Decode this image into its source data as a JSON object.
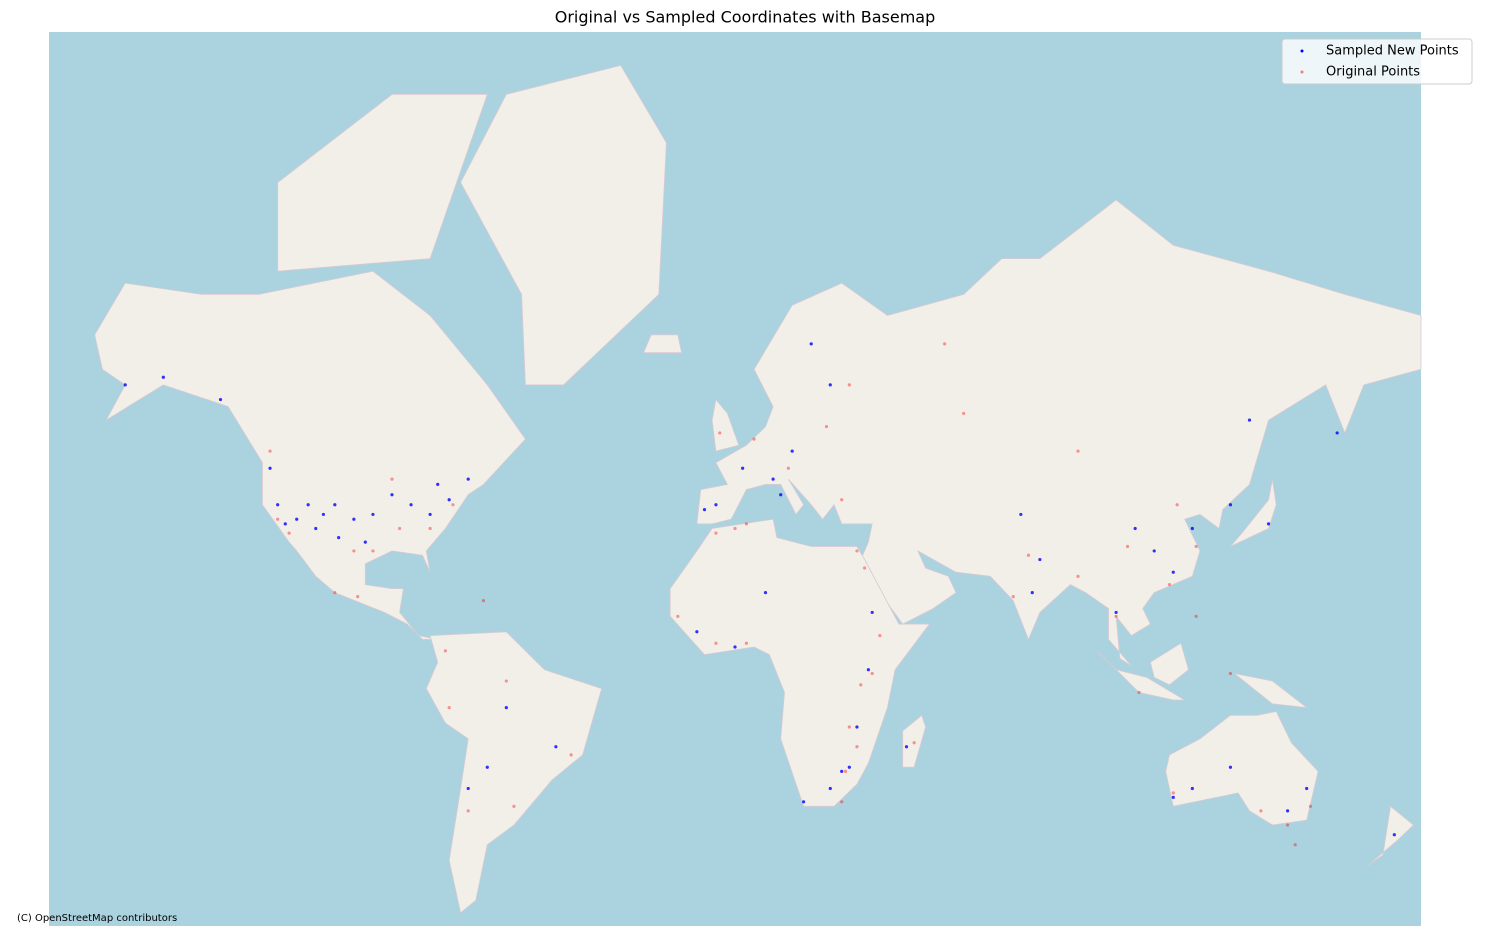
{
  "chart_data": {
    "type": "scatter",
    "title": "Original vs Sampled Coordinates with Basemap",
    "attribution": "(C) OpenStreetMap contributors",
    "projection": "mercator",
    "xlim": [
      -180,
      180
    ],
    "ylim": [
      -56,
      84
    ],
    "ocean_color": "#aad3df",
    "land_color": "#f2efe9",
    "legend": "upper right",
    "series": [
      {
        "name": "Sampled New Points",
        "color": "#0000ff",
        "x": [
          -120,
          -118,
          -115,
          -112,
          -110,
          -108,
          -105,
          -104,
          -100,
          -97,
          -95,
          -90,
          -85,
          -80,
          -75,
          -122,
          -150,
          -160,
          -135,
          -70,
          -78,
          10,
          2,
          15,
          25,
          20,
          12,
          -5,
          -8,
          30,
          28,
          25,
          18,
          32,
          35,
          36,
          -10,
          0,
          8,
          45,
          78,
          80,
          110,
          115,
          120,
          105,
          130,
          140,
          100,
          75,
          135,
          158,
          -70,
          -60,
          -47,
          -65,
          120,
          145,
          150,
          130,
          115,
          173
        ],
        "values": [
          40,
          36,
          37,
          40,
          35,
          38,
          40,
          33,
          37,
          32,
          38,
          42,
          40,
          38,
          41,
          47,
          61,
          60,
          58,
          45,
          44,
          45,
          47,
          50,
          60,
          65,
          42,
          40,
          39,
          -25,
          -26,
          -30,
          -33,
          -15,
          0,
          15,
          10,
          6,
          20,
          -20,
          20,
          28,
          30,
          25,
          35,
          35,
          40,
          36,
          15,
          38,
          55,
          53,
          -30,
          -10,
          -20,
          -25,
          -30,
          -35,
          -30,
          -25,
          -32,
          -40
        ]
      },
      {
        "name": "Original Points",
        "color": "#ff0000",
        "x": [
          -117,
          -120,
          -100,
          -95,
          -88,
          -80,
          -74,
          -122,
          -90,
          -105,
          -99,
          -66,
          -4,
          5,
          14,
          24,
          28,
          30,
          -5,
          0,
          3,
          -15,
          -5,
          3,
          38,
          36,
          30,
          32,
          29,
          28,
          47,
          33,
          34,
          32,
          77,
          73,
          90,
          103,
          114,
          121,
          116,
          60,
          90,
          100,
          106,
          121,
          130,
          55,
          -60,
          -43,
          -70,
          -75,
          -58,
          -76,
          151,
          145,
          147,
          115,
          138
        ],
        "values": [
          34,
          37,
          30,
          30,
          35,
          35,
          40,
          50,
          45,
          20,
          19,
          18,
          53,
          52,
          47,
          54,
          41,
          60,
          34,
          35,
          36,
          14,
          7,
          7,
          9,
          -1,
          -15,
          -20,
          -26,
          -33,
          -19,
          -4,
          26,
          30,
          29,
          19,
          24,
          31,
          22,
          31,
          40,
          56,
          50,
          14,
          -6,
          14,
          -1,
          65,
          -3,
          -22,
          -35,
          -10,
          -34,
          5,
          -34,
          -38,
          -42,
          -31,
          -35
        ]
      }
    ]
  }
}
